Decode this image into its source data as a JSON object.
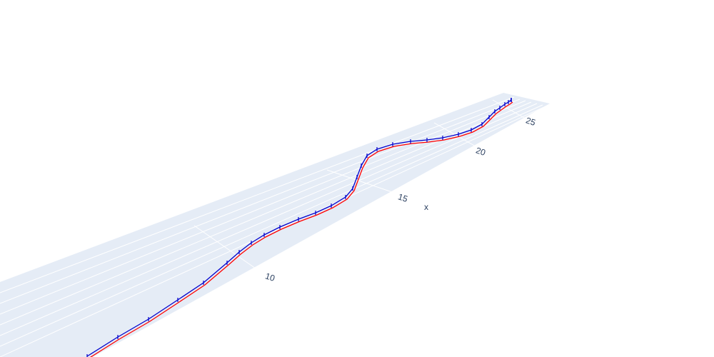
{
  "chart_data": {
    "type": "line",
    "dimension": "3d",
    "xlabel": "x",
    "xticks": [
      10,
      15,
      20,
      25
    ],
    "x_range": [
      5,
      26
    ],
    "grid": true,
    "legend": "none",
    "colors": {
      "plane": "#e5ecf6",
      "grid": "#ffffff",
      "tick_text": "#2a3f5f",
      "series_red": "#ff0000",
      "series_blue": "#0000cc"
    },
    "series": [
      {
        "color": "#ff0000",
        "marker": "none",
        "x": [
          5.0,
          6.0,
          7.0,
          8.0,
          9.0,
          10.0,
          10.5,
          11.0,
          11.5,
          12.0,
          12.5,
          13.0,
          13.5,
          14.0,
          14.3,
          14.6,
          14.9,
          15.2,
          15.5,
          16.0,
          16.5,
          17.0,
          17.5,
          18.0,
          18.5,
          19.0,
          19.5,
          20.0,
          20.5,
          21.0,
          21.5,
          22.0,
          22.5,
          23.0,
          23.5,
          24.0
        ]
      },
      {
        "color": "#0000cc",
        "marker": "tick",
        "x": [
          5.0,
          6.0,
          7.0,
          8.0,
          9.0,
          10.0,
          10.5,
          11.0,
          11.5,
          12.0,
          12.5,
          13.0,
          13.5,
          14.0,
          14.3,
          14.6,
          14.9,
          15.2,
          15.5,
          16.0,
          16.5,
          17.0,
          17.5,
          18.0,
          18.5,
          19.0,
          19.5,
          20.0,
          20.5,
          21.0,
          21.5,
          22.0,
          22.5,
          23.0,
          23.5,
          24.0
        ]
      }
    ]
  }
}
